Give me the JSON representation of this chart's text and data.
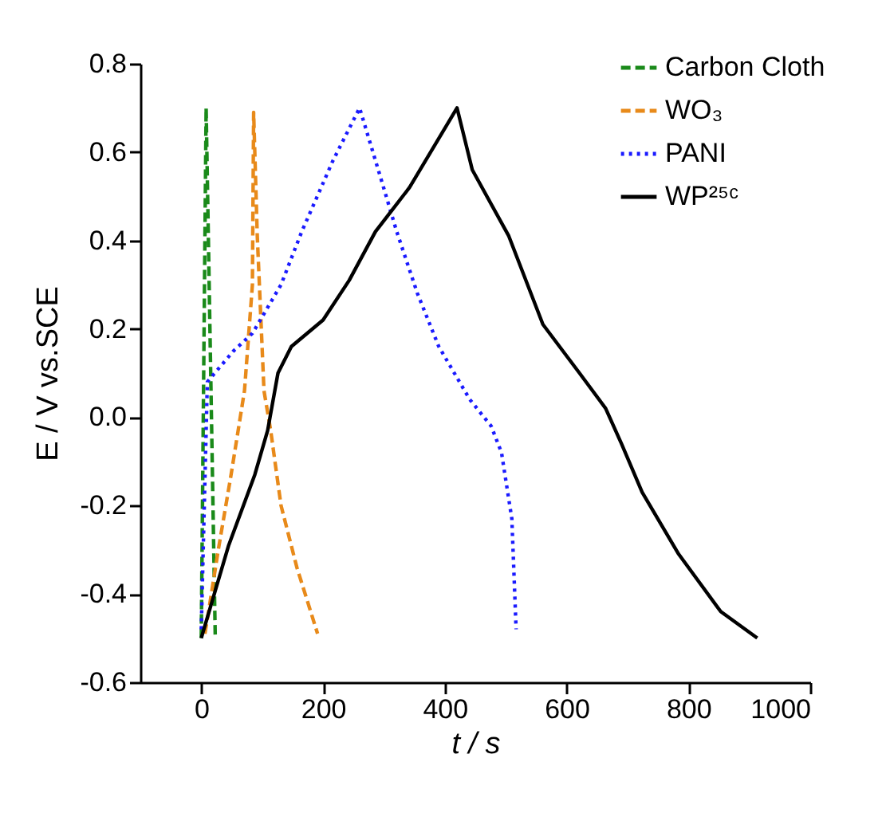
{
  "chart_data": {
    "type": "line",
    "xlabel": "t / s",
    "ylabel": "E / V vs.SCE",
    "xlim": [
      -100,
      1000
    ],
    "xticks": [
      0,
      200,
      400,
      600,
      800,
      1000
    ],
    "ylim": [
      -0.6,
      0.8
    ],
    "yticks": [
      {
        "value": -0.6,
        "label": "-0.6"
      },
      {
        "value": -0.4,
        "label": "-0.4"
      },
      {
        "value": -0.2,
        "label": "-0.2"
      },
      {
        "value": 0,
        "label": "0.0"
      },
      {
        "value": 0.2,
        "label": "0.2"
      },
      {
        "value": 0.4,
        "label": "0.4"
      },
      {
        "value": 0.6,
        "label": "0.6"
      },
      {
        "value": 0.8,
        "label": "0.8"
      }
    ],
    "grid": false,
    "legend": "top right",
    "marker": "none",
    "series": [
      {
        "name": "Carbon Cloth",
        "color": "#1a8a1a",
        "line_style": "dashed",
        "x": [
          0,
          8,
          23
        ],
        "values": [
          -0.5,
          0.7,
          -0.5
        ]
      },
      {
        "name": "WO₃",
        "color": "#e88a1a",
        "line_style": "dashed",
        "x": [
          6,
          12,
          28,
          49,
          71,
          84,
          86,
          92,
          103,
          114,
          131,
          157,
          191
        ],
        "values": [
          -0.49,
          -0.44,
          -0.3,
          -0.13,
          0.06,
          0.3,
          0.69,
          0.41,
          0.06,
          -0.03,
          -0.2,
          -0.34,
          -0.49
        ]
      },
      {
        "name": "PANI",
        "color": "#1a1aff",
        "line_style": "dotted",
        "x": [
          0,
          10,
          53,
          84,
          97,
          131,
          165,
          216,
          260,
          295,
          321,
          355,
          390,
          441,
          476,
          493,
          510,
          517
        ],
        "values": [
          -0.48,
          0.08,
          0.15,
          0.19,
          0.22,
          0.3,
          0.42,
          0.58,
          0.7,
          0.54,
          0.42,
          0.28,
          0.16,
          0.04,
          -0.02,
          -0.08,
          -0.23,
          -0.48
        ]
      },
      {
        "name": "WP²⁵ᶜ",
        "color": "#000000",
        "line_style": "solid",
        "x": [
          0,
          45,
          88,
          109,
          126,
          148,
          200,
          243,
          286,
          342,
          420,
          445,
          505,
          561,
          621,
          664,
          690,
          724,
          784,
          853,
          913
        ],
        "values": [
          -0.5,
          -0.29,
          -0.13,
          -0.03,
          0.1,
          0.16,
          0.22,
          0.31,
          0.42,
          0.52,
          0.7,
          0.56,
          0.41,
          0.21,
          0.1,
          0.02,
          -0.06,
          -0.17,
          -0.31,
          -0.44,
          -0.5
        ]
      }
    ]
  }
}
